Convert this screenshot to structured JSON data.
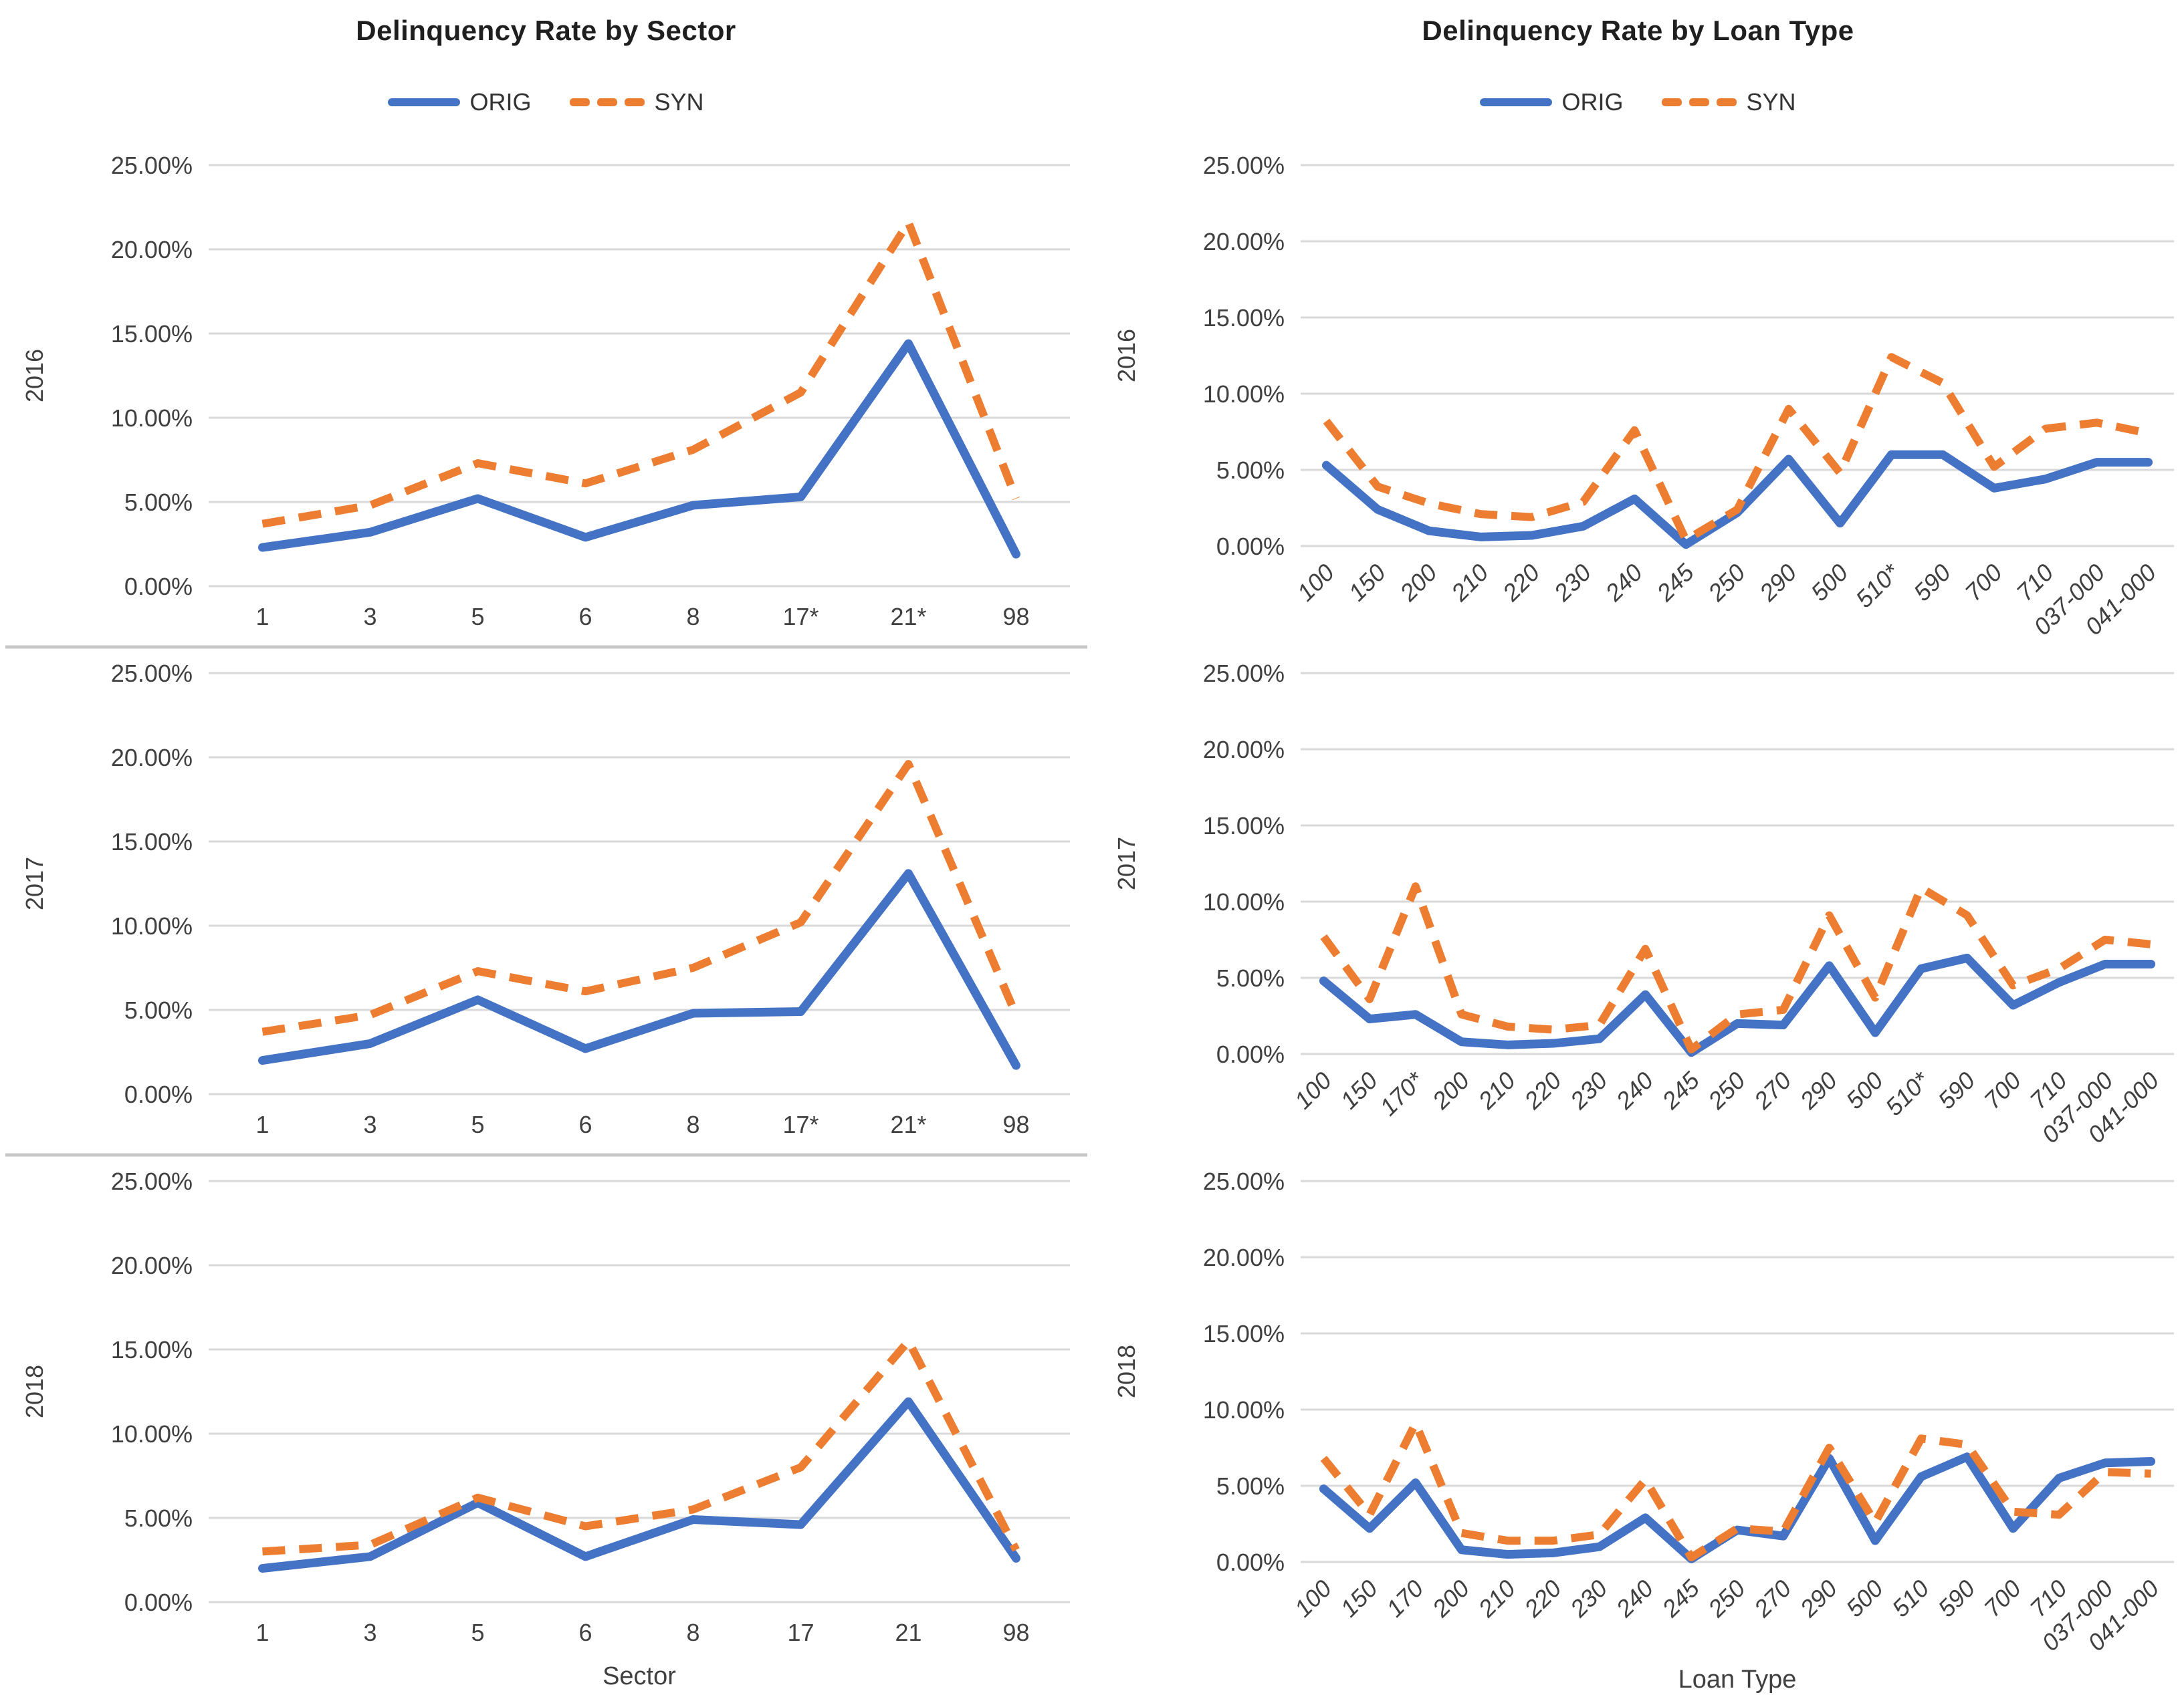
{
  "colors": {
    "orig": "#4472C4",
    "syn": "#ED7D31",
    "grid": "#D9D9D9",
    "text": "#404040"
  },
  "legend": {
    "orig": "ORIG",
    "syn": "SYN"
  },
  "y_axis": {
    "tick_labels": [
      "25.00%",
      "20.00%",
      "15.00%",
      "10.00%",
      "5.00%",
      "0.00%"
    ],
    "max": 25,
    "min": 0
  },
  "columns": [
    {
      "title": "Delinquency Rate by Sector",
      "charts": [
        0,
        1,
        2
      ]
    },
    {
      "title": "Delinquency Rate by Loan Type",
      "charts": [
        3,
        4,
        5
      ]
    }
  ],
  "chart_data": [
    {
      "type": "line",
      "group": "sector",
      "row_label": "2016",
      "title": "Delinquency Rate by Sector",
      "xlabel": "",
      "ylim": [
        0,
        25
      ],
      "grid": true,
      "legend_position": "top",
      "x_tick_rotation": 0,
      "top_border": false,
      "categories": [
        "1",
        "3",
        "5",
        "6",
        "8",
        "17*",
        "21*",
        "98"
      ],
      "series": [
        {
          "name": "ORIG",
          "values": [
            2.3,
            3.2,
            5.2,
            2.9,
            4.8,
            5.3,
            14.4,
            1.9
          ]
        },
        {
          "name": "SYN",
          "values": [
            3.7,
            4.8,
            7.3,
            6.1,
            8.1,
            11.5,
            21.6,
            5.2
          ]
        }
      ]
    },
    {
      "type": "line",
      "group": "sector",
      "row_label": "2017",
      "title": "Delinquency Rate by Sector",
      "xlabel": "",
      "ylim": [
        0,
        25
      ],
      "grid": true,
      "legend_position": "none",
      "x_tick_rotation": 0,
      "top_border": true,
      "categories": [
        "1",
        "3",
        "5",
        "6",
        "8",
        "17*",
        "21*",
        "98"
      ],
      "series": [
        {
          "name": "ORIG",
          "values": [
            2.0,
            3.0,
            5.6,
            2.7,
            4.8,
            4.9,
            13.1,
            1.7
          ]
        },
        {
          "name": "SYN",
          "values": [
            3.7,
            4.7,
            7.3,
            6.1,
            7.5,
            10.2,
            19.6,
            4.7
          ]
        }
      ]
    },
    {
      "type": "line",
      "group": "sector",
      "row_label": "2018",
      "title": "Delinquency Rate by Sector",
      "xlabel": "Sector",
      "ylim": [
        0,
        25
      ],
      "grid": true,
      "legend_position": "none",
      "x_tick_rotation": 0,
      "top_border": true,
      "categories": [
        "1",
        "3",
        "5",
        "6",
        "8",
        "17",
        "21",
        "98"
      ],
      "series": [
        {
          "name": "ORIG",
          "values": [
            2.0,
            2.7,
            5.9,
            2.7,
            4.9,
            4.6,
            11.9,
            2.6
          ]
        },
        {
          "name": "SYN",
          "values": [
            3.0,
            3.4,
            6.2,
            4.5,
            5.5,
            8.0,
            15.5,
            3.1
          ]
        }
      ]
    },
    {
      "type": "line",
      "group": "loan-type",
      "row_label": "2016",
      "title": "Delinquency Rate by Loan Type",
      "xlabel": "",
      "ylim": [
        0,
        25
      ],
      "grid": true,
      "legend_position": "top",
      "x_tick_rotation": 45,
      "top_border": false,
      "categories": [
        "100",
        "150",
        "200",
        "210",
        "220",
        "230",
        "240",
        "245",
        "250",
        "290",
        "500",
        "510*",
        "590",
        "700",
        "710",
        "037-000",
        "041-000"
      ],
      "series": [
        {
          "name": "ORIG",
          "values": [
            5.3,
            2.4,
            1.0,
            0.6,
            0.7,
            1.3,
            3.1,
            0.1,
            2.2,
            5.7,
            1.5,
            6.0,
            6.0,
            3.8,
            4.4,
            5.5,
            5.5
          ]
        },
        {
          "name": "SYN",
          "values": [
            8.2,
            3.9,
            2.8,
            2.1,
            1.9,
            2.9,
            7.6,
            0.4,
            2.4,
            9.0,
            4.8,
            12.4,
            10.7,
            5.2,
            7.7,
            8.1,
            7.4
          ]
        }
      ]
    },
    {
      "type": "line",
      "group": "loan-type",
      "row_label": "2017",
      "title": "Delinquency Rate by Loan Type",
      "xlabel": "",
      "ylim": [
        0,
        25
      ],
      "grid": true,
      "legend_position": "none",
      "x_tick_rotation": 45,
      "top_border": false,
      "categories": [
        "100",
        "150",
        "170*",
        "200",
        "210",
        "220",
        "230",
        "240",
        "245",
        "250",
        "270",
        "290",
        "500",
        "510*",
        "590",
        "700",
        "710",
        "037-000",
        "041-000"
      ],
      "series": [
        {
          "name": "ORIG",
          "values": [
            4.8,
            2.3,
            2.6,
            0.8,
            0.6,
            0.7,
            1.0,
            3.9,
            0.1,
            2.0,
            1.9,
            5.8,
            1.4,
            5.6,
            6.3,
            3.2,
            4.7,
            5.9,
            5.9
          ]
        },
        {
          "name": "SYN",
          "values": [
            7.7,
            3.6,
            11.0,
            2.6,
            1.8,
            1.6,
            1.9,
            6.9,
            0.3,
            2.6,
            2.9,
            9.1,
            3.7,
            10.9,
            9.1,
            4.5,
            5.6,
            7.5,
            7.2
          ]
        }
      ]
    },
    {
      "type": "line",
      "group": "loan-type",
      "row_label": "2018",
      "title": "Delinquency Rate by Loan Type",
      "xlabel": "Loan Type",
      "ylim": [
        0,
        25
      ],
      "grid": true,
      "legend_position": "none",
      "x_tick_rotation": 45,
      "top_border": false,
      "categories": [
        "100",
        "150",
        "170",
        "200",
        "210",
        "220",
        "230",
        "240",
        "245",
        "250",
        "270",
        "290",
        "500",
        "510",
        "590",
        "700",
        "710",
        "037-000",
        "041-000"
      ],
      "series": [
        {
          "name": "ORIG",
          "values": [
            4.8,
            2.2,
            5.2,
            0.8,
            0.5,
            0.6,
            1.0,
            2.9,
            0.2,
            2.1,
            1.7,
            6.8,
            1.4,
            5.6,
            6.9,
            2.2,
            5.5,
            6.5,
            6.6
          ]
        },
        {
          "name": "SYN",
          "values": [
            6.8,
            3.1,
            9.1,
            1.9,
            1.4,
            1.4,
            1.8,
            5.4,
            0.3,
            2.2,
            2.0,
            7.5,
            2.6,
            8.1,
            7.7,
            3.3,
            3.1,
            5.9,
            5.8
          ]
        }
      ]
    }
  ]
}
